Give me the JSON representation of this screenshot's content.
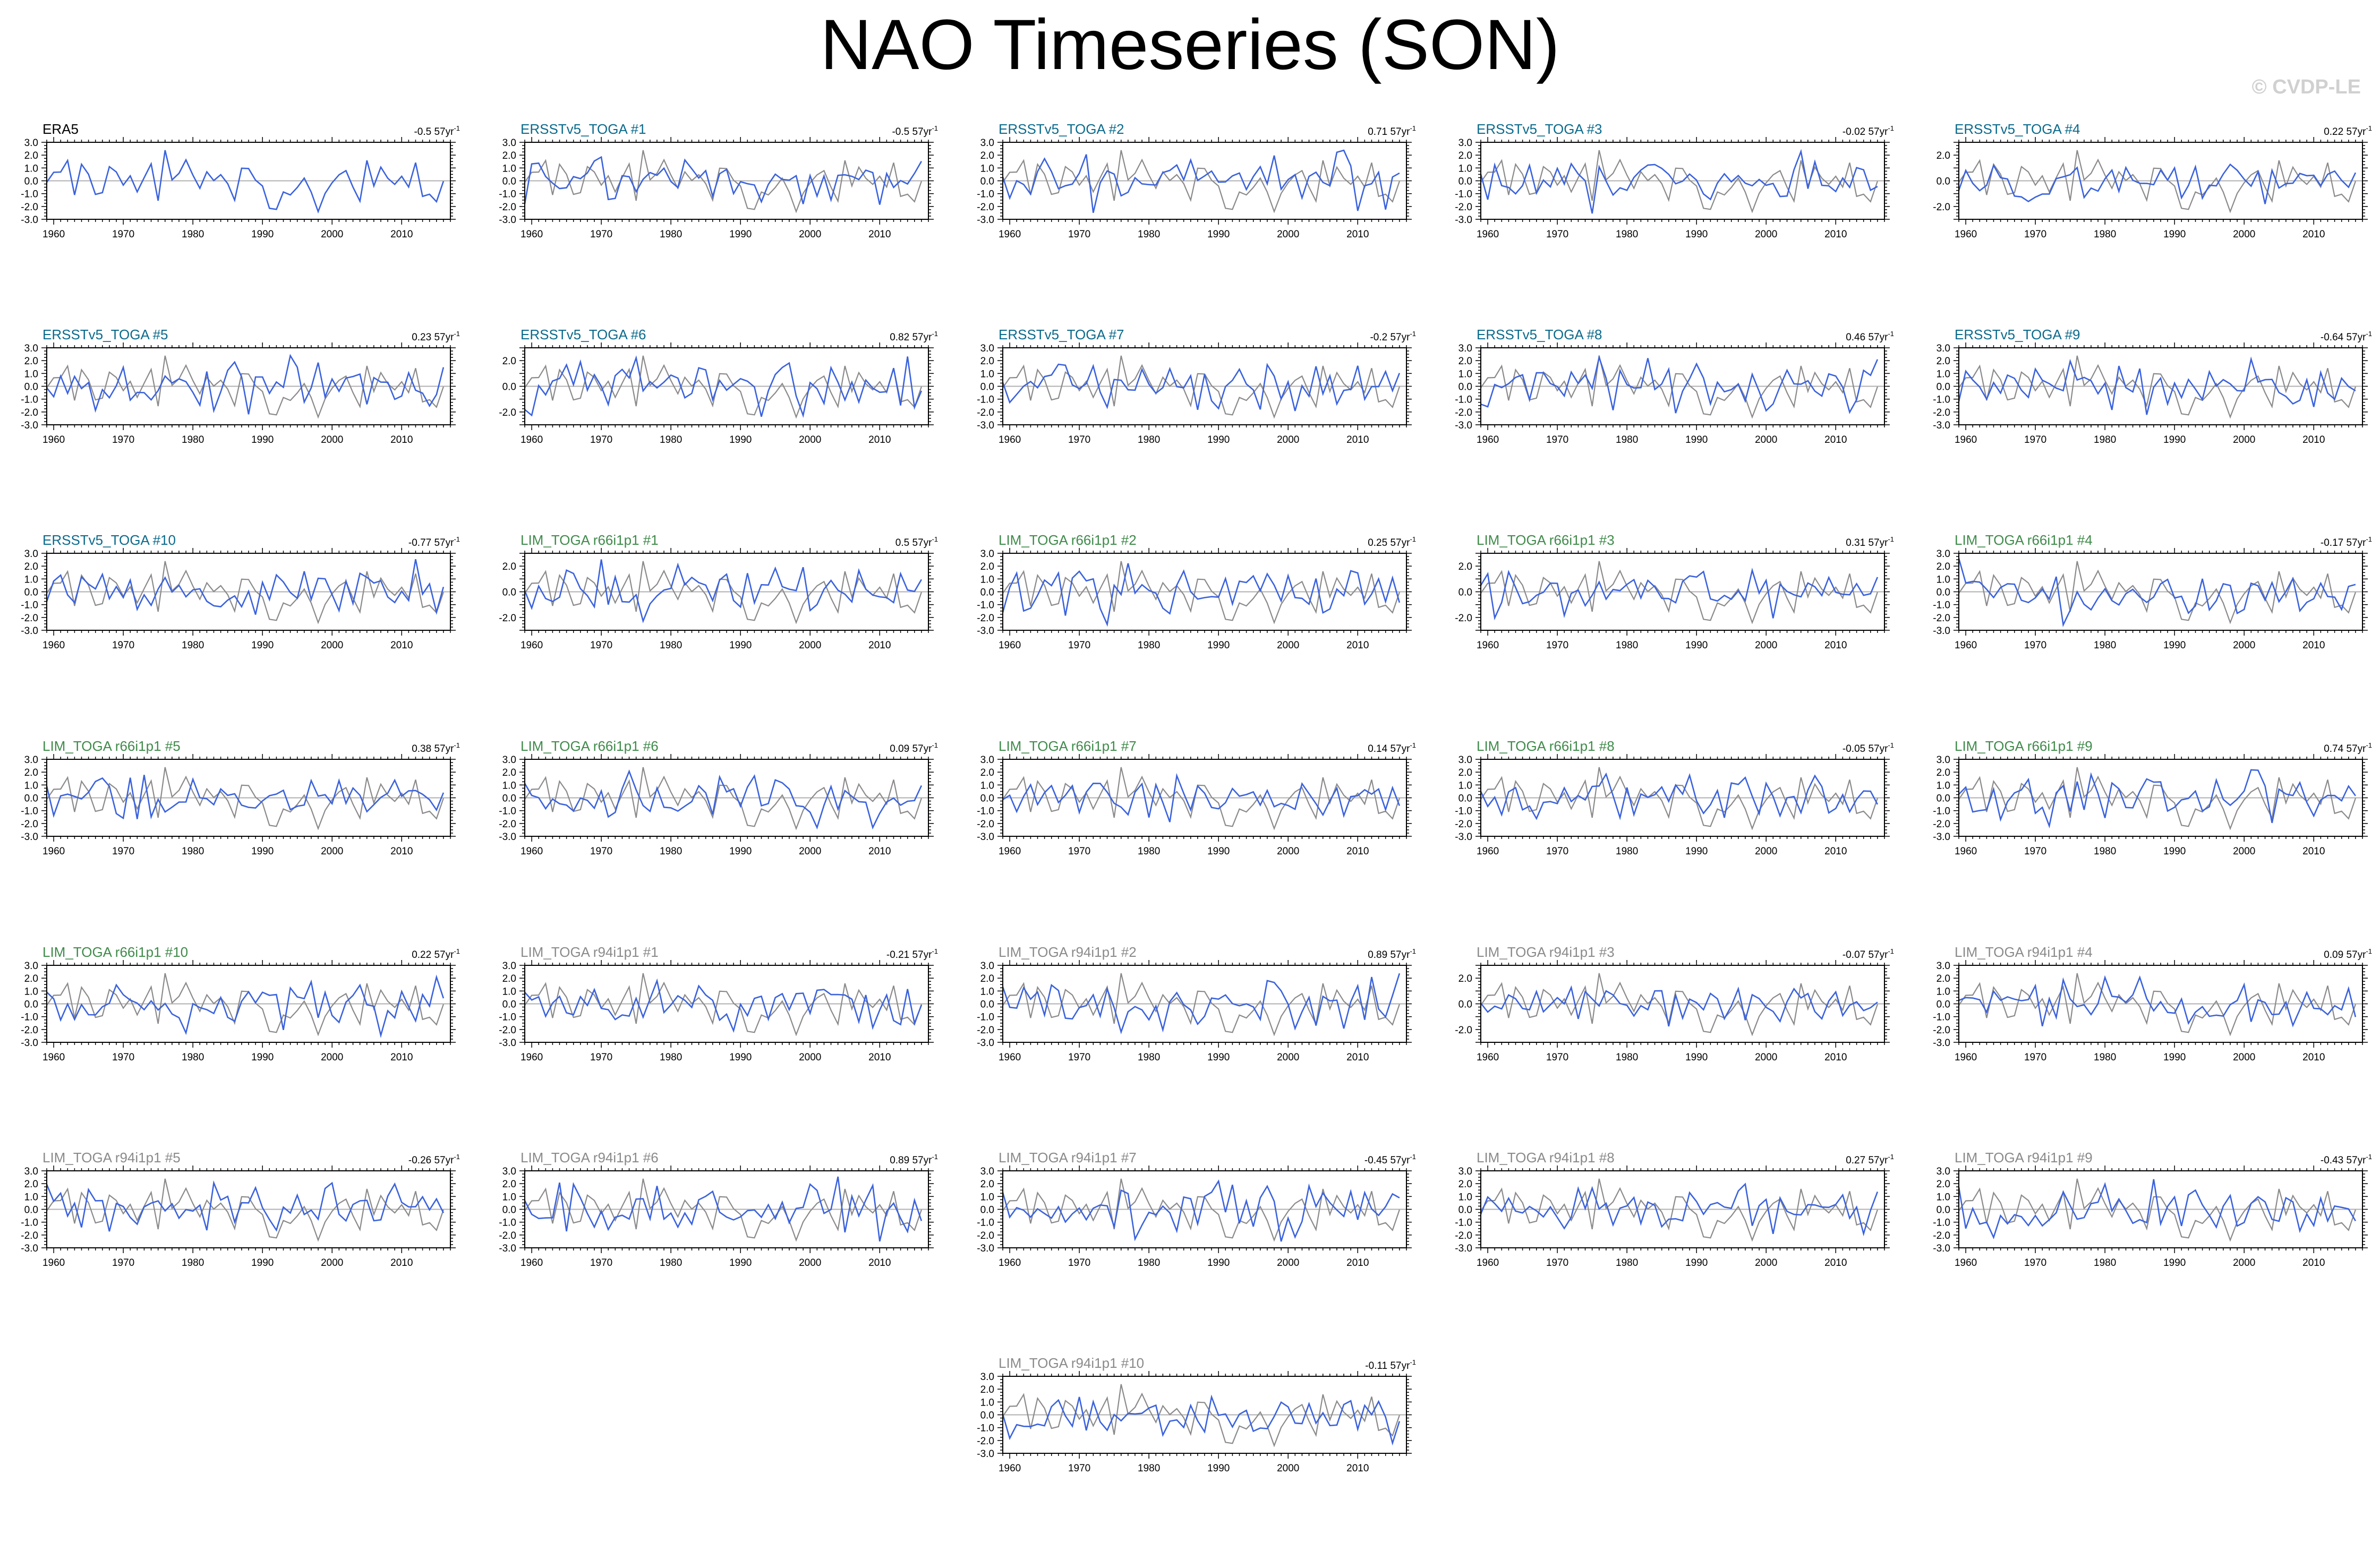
{
  "title": "NAO Timeseries (SON)",
  "watermark": "© CVDP-LE",
  "colors": {
    "member_line": "#3a62dd",
    "obs_line": "#8a8a8a",
    "zero_line": "#b0b0b0",
    "title_obs": "#000000",
    "title_ersst": "#0b6a8c",
    "title_lim66": "#3f8b4a",
    "title_lim94": "#8a8a8a"
  },
  "chart_data": {
    "type": "line",
    "x_range": [
      1959,
      2017
    ],
    "x_ticks": [
      "1960",
      "1970",
      "1980",
      "1990",
      "2000",
      "2010"
    ],
    "y_ticks_standard": [
      "3.0",
      "2.0",
      "1.0",
      "0.0",
      "-1.0",
      "-2.0",
      "-3.0"
    ],
    "y_ticks_sparse": [
      "2.0",
      "0.0",
      "-2.0"
    ],
    "grid": false,
    "panels": [
      {
        "title": "ERA5",
        "trend": "-0.5",
        "group": "obs",
        "ylim": [
          -3,
          3
        ],
        "ticks": "standard",
        "seed": 1
      },
      {
        "title": "ERSSTv5_TOGA #1",
        "trend": "-0.5",
        "group": "ersst",
        "ylim": [
          -3,
          3
        ],
        "ticks": "standard",
        "seed": 2
      },
      {
        "title": "ERSSTv5_TOGA #2",
        "trend": "0.71",
        "group": "ersst",
        "ylim": [
          -3,
          3
        ],
        "ticks": "standard",
        "seed": 3
      },
      {
        "title": "ERSSTv5_TOGA #3",
        "trend": "-0.02",
        "group": "ersst",
        "ylim": [
          -3,
          3
        ],
        "ticks": "standard",
        "seed": 4
      },
      {
        "title": "ERSSTv5_TOGA #4",
        "trend": "0.22",
        "group": "ersst",
        "ylim": [
          -3,
          3
        ],
        "ticks": "sparse",
        "seed": 5
      },
      {
        "title": "ERSSTv5_TOGA #5",
        "trend": "0.23",
        "group": "ersst",
        "ylim": [
          -3,
          3
        ],
        "ticks": "standard",
        "seed": 6
      },
      {
        "title": "ERSSTv5_TOGA #6",
        "trend": "0.82",
        "group": "ersst",
        "ylim": [
          -3,
          3
        ],
        "ticks": "sparse",
        "seed": 7
      },
      {
        "title": "ERSSTv5_TOGA #7",
        "trend": "-0.2",
        "group": "ersst",
        "ylim": [
          -3,
          3
        ],
        "ticks": "standard",
        "seed": 8
      },
      {
        "title": "ERSSTv5_TOGA #8",
        "trend": "0.46",
        "group": "ersst",
        "ylim": [
          -3,
          3
        ],
        "ticks": "standard",
        "seed": 9
      },
      {
        "title": "ERSSTv5_TOGA #9",
        "trend": "-0.64",
        "group": "ersst",
        "ylim": [
          -3,
          3
        ],
        "ticks": "standard",
        "seed": 10
      },
      {
        "title": "ERSSTv5_TOGA #10",
        "trend": "-0.77",
        "group": "ersst",
        "ylim": [
          -3,
          3
        ],
        "ticks": "standard",
        "seed": 11
      },
      {
        "title": "LIM_TOGA r66i1p1 #1",
        "trend": "0.5",
        "group": "lim66",
        "ylim": [
          -3,
          3
        ],
        "ticks": "sparse",
        "seed": 12
      },
      {
        "title": "LIM_TOGA r66i1p1 #2",
        "trend": "0.25",
        "group": "lim66",
        "ylim": [
          -3,
          3
        ],
        "ticks": "standard",
        "seed": 13
      },
      {
        "title": "LIM_TOGA r66i1p1 #3",
        "trend": "0.31",
        "group": "lim66",
        "ylim": [
          -3,
          3
        ],
        "ticks": "sparse",
        "seed": 14
      },
      {
        "title": "LIM_TOGA r66i1p1 #4",
        "trend": "-0.17",
        "group": "lim66",
        "ylim": [
          -3,
          3
        ],
        "ticks": "standard",
        "seed": 15
      },
      {
        "title": "LIM_TOGA r66i1p1 #5",
        "trend": "0.38",
        "group": "lim66",
        "ylim": [
          -3,
          3
        ],
        "ticks": "standard",
        "seed": 16
      },
      {
        "title": "LIM_TOGA r66i1p1 #6",
        "trend": "0.09",
        "group": "lim66",
        "ylim": [
          -3,
          3
        ],
        "ticks": "standard",
        "seed": 17
      },
      {
        "title": "LIM_TOGA r66i1p1 #7",
        "trend": "0.14",
        "group": "lim66",
        "ylim": [
          -3,
          3
        ],
        "ticks": "standard",
        "seed": 18
      },
      {
        "title": "LIM_TOGA r66i1p1 #8",
        "trend": "-0.05",
        "group": "lim66",
        "ylim": [
          -3,
          3
        ],
        "ticks": "standard",
        "seed": 19
      },
      {
        "title": "LIM_TOGA r66i1p1 #9",
        "trend": "0.74",
        "group": "lim66",
        "ylim": [
          -3,
          3
        ],
        "ticks": "standard",
        "seed": 20
      },
      {
        "title": "LIM_TOGA r66i1p1 #10",
        "trend": "0.22",
        "group": "lim66",
        "ylim": [
          -3,
          3
        ],
        "ticks": "standard",
        "seed": 21
      },
      {
        "title": "LIM_TOGA r94i1p1 #1",
        "trend": "-0.21",
        "group": "lim94",
        "ylim": [
          -3,
          3
        ],
        "ticks": "standard",
        "seed": 22
      },
      {
        "title": "LIM_TOGA r94i1p1 #2",
        "trend": "0.89",
        "group": "lim94",
        "ylim": [
          -3,
          3
        ],
        "ticks": "standard",
        "seed": 23
      },
      {
        "title": "LIM_TOGA r94i1p1 #3",
        "trend": "-0.07",
        "group": "lim94",
        "ylim": [
          -3,
          3
        ],
        "ticks": "sparse",
        "seed": 24
      },
      {
        "title": "LIM_TOGA r94i1p1 #4",
        "trend": "0.09",
        "group": "lim94",
        "ylim": [
          -3,
          3
        ],
        "ticks": "standard",
        "seed": 25
      },
      {
        "title": "LIM_TOGA r94i1p1 #5",
        "trend": "-0.26",
        "group": "lim94",
        "ylim": [
          -3,
          3
        ],
        "ticks": "standard",
        "seed": 26
      },
      {
        "title": "LIM_TOGA r94i1p1 #6",
        "trend": "0.89",
        "group": "lim94",
        "ylim": [
          -3,
          3
        ],
        "ticks": "standard",
        "seed": 27
      },
      {
        "title": "LIM_TOGA r94i1p1 #7",
        "trend": "-0.45",
        "group": "lim94",
        "ylim": [
          -3,
          3
        ],
        "ticks": "standard",
        "seed": 28
      },
      {
        "title": "LIM_TOGA r94i1p1 #8",
        "trend": "0.27",
        "group": "lim94",
        "ylim": [
          -3,
          3
        ],
        "ticks": "standard",
        "seed": 29
      },
      {
        "title": "LIM_TOGA r94i1p1 #9",
        "trend": "-0.43",
        "group": "lim94",
        "ylim": [
          -3,
          3
        ],
        "ticks": "standard",
        "seed": 30
      },
      {
        "title": "LIM_TOGA r94i1p1 #10",
        "trend": "-0.11",
        "group": "lim94",
        "ylim": [
          -3,
          3
        ],
        "ticks": "standard",
        "seed": 31
      }
    ]
  }
}
